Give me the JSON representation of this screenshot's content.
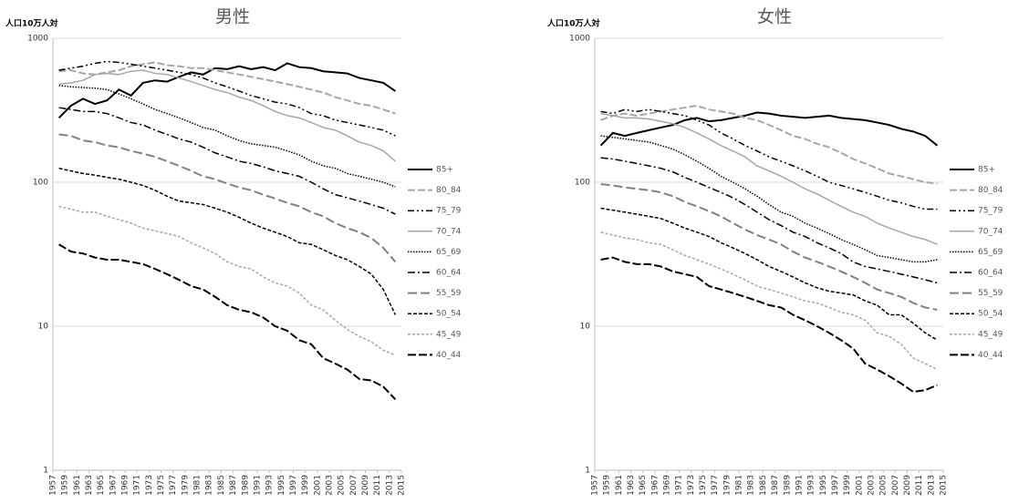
{
  "chart_data": [
    {
      "type": "line",
      "title": "男性",
      "ylabel": "人口10万人対",
      "log": true,
      "grid": true,
      "ylim": [
        1,
        1000
      ],
      "yticks": [
        1,
        10,
        100,
        1000
      ],
      "xlim": [
        1957,
        2015
      ],
      "xticks": [
        1957,
        1959,
        1961,
        1963,
        1965,
        1967,
        1969,
        1971,
        1973,
        1975,
        1977,
        1979,
        1981,
        1983,
        1985,
        1987,
        1989,
        1991,
        1993,
        1995,
        1997,
        1999,
        2001,
        2003,
        2005,
        2007,
        2009,
        2011,
        2013,
        2015
      ],
      "x": [
        1958,
        1960,
        1962,
        1964,
        1966,
        1968,
        1970,
        1972,
        1974,
        1976,
        1978,
        1980,
        1982,
        1984,
        1986,
        1988,
        1990,
        1992,
        1994,
        1996,
        1998,
        2000,
        2002,
        2004,
        2006,
        2008,
        2010,
        2012,
        2014
      ],
      "series": [
        {
          "name": "85+",
          "color": "#000000",
          "width": 2,
          "dash": "none",
          "values": [
            280,
            340,
            380,
            350,
            370,
            440,
            400,
            490,
            510,
            500,
            540,
            580,
            560,
            620,
            610,
            640,
            610,
            630,
            600,
            670,
            630,
            620,
            590,
            580,
            570,
            530,
            510,
            490,
            430
          ]
        },
        {
          "name": "80_84",
          "color": "#a6a6a6",
          "width": 2,
          "dash": "8 3",
          "values": [
            590,
            600,
            570,
            560,
            580,
            600,
            640,
            660,
            680,
            650,
            640,
            620,
            620,
            600,
            580,
            560,
            540,
            520,
            500,
            480,
            460,
            440,
            420,
            390,
            370,
            350,
            340,
            320,
            300
          ]
        },
        {
          "name": "75_79",
          "color": "#000000",
          "width": 1.5,
          "dash": "7 3 2 3 2 3",
          "values": [
            600,
            620,
            640,
            670,
            690,
            680,
            660,
            640,
            620,
            600,
            580,
            560,
            530,
            490,
            460,
            430,
            400,
            380,
            360,
            350,
            330,
            300,
            290,
            270,
            260,
            250,
            240,
            230,
            210
          ]
        },
        {
          "name": "70_74",
          "color": "#a6a6a6",
          "width": 1.5,
          "dash": "none",
          "values": [
            480,
            490,
            510,
            560,
            570,
            560,
            590,
            600,
            570,
            560,
            530,
            500,
            470,
            440,
            420,
            390,
            370,
            340,
            310,
            290,
            280,
            260,
            240,
            230,
            210,
            190,
            180,
            165,
            140
          ]
        },
        {
          "name": "65_69",
          "color": "#000000",
          "width": 1.5,
          "dash": "1.5 1.5",
          "values": [
            470,
            460,
            455,
            450,
            440,
            410,
            380,
            350,
            320,
            300,
            280,
            260,
            240,
            230,
            210,
            195,
            185,
            180,
            175,
            165,
            155,
            140,
            130,
            125,
            115,
            110,
            105,
            100,
            93
          ]
        },
        {
          "name": "60_64",
          "color": "#000000",
          "width": 1.5,
          "dash": "8 3 2 3",
          "values": [
            330,
            320,
            310,
            310,
            300,
            280,
            260,
            250,
            230,
            215,
            200,
            190,
            175,
            160,
            150,
            140,
            135,
            128,
            120,
            115,
            110,
            100,
            90,
            82,
            78,
            74,
            70,
            66,
            60
          ]
        },
        {
          "name": "55_59",
          "color": "#808080",
          "width": 2,
          "dash": "10 4",
          "values": [
            215,
            210,
            195,
            190,
            180,
            175,
            165,
            158,
            150,
            140,
            130,
            120,
            110,
            105,
            98,
            92,
            88,
            82,
            77,
            72,
            68,
            62,
            58,
            52,
            48,
            45,
            41,
            35,
            28
          ]
        },
        {
          "name": "50_54",
          "color": "#000000",
          "width": 1.5,
          "dash": "4 2",
          "values": [
            125,
            120,
            115,
            112,
            108,
            105,
            100,
            95,
            88,
            80,
            74,
            72,
            70,
            66,
            62,
            57,
            52,
            48,
            45,
            42,
            38,
            37,
            34,
            31,
            29,
            26,
            23,
            18,
            12
          ]
        },
        {
          "name": "45_49",
          "color": "#a6a6a6",
          "width": 1.5,
          "dash": "3 2",
          "values": [
            68,
            65,
            62,
            62,
            58,
            55,
            52,
            48,
            46,
            44,
            42,
            38,
            35,
            32,
            28,
            26,
            25,
            22,
            20,
            19,
            17,
            14,
            13,
            11,
            9.5,
            8.5,
            7.8,
            6.8,
            6.3
          ]
        },
        {
          "name": "40_44",
          "color": "#000000",
          "width": 2,
          "dash": "9 3",
          "values": [
            37,
            33,
            32,
            30,
            29,
            29,
            28,
            27,
            25,
            23,
            21,
            19,
            18,
            16,
            14,
            13,
            12.5,
            11.5,
            10,
            9.3,
            8,
            7.5,
            6,
            5.5,
            5,
            4.3,
            4.2,
            3.8,
            3.1
          ]
        }
      ]
    },
    {
      "type": "line",
      "title": "女性",
      "ylabel": "人口10万人対",
      "log": true,
      "grid": true,
      "ylim": [
        1,
        1000
      ],
      "yticks": [
        1,
        10,
        100,
        1000
      ],
      "xlim": [
        1957,
        2015
      ],
      "xticks": [
        1957,
        1959,
        1961,
        1963,
        1965,
        1967,
        1969,
        1971,
        1973,
        1975,
        1977,
        1979,
        1981,
        1983,
        1985,
        1987,
        1989,
        1991,
        1993,
        1995,
        1997,
        1999,
        2001,
        2003,
        2005,
        2007,
        2009,
        2011,
        2013,
        2015
      ],
      "x": [
        1958,
        1960,
        1962,
        1964,
        1966,
        1968,
        1970,
        1972,
        1974,
        1976,
        1978,
        1980,
        1982,
        1984,
        1986,
        1988,
        1990,
        1992,
        1994,
        1996,
        1998,
        2000,
        2002,
        2004,
        2006,
        2008,
        2010,
        2012,
        2014
      ],
      "series": [
        {
          "name": "85+",
          "color": "#000000",
          "width": 2,
          "dash": "none",
          "values": [
            180,
            220,
            210,
            220,
            230,
            240,
            250,
            270,
            280,
            265,
            270,
            280,
            290,
            305,
            300,
            290,
            285,
            280,
            285,
            290,
            280,
            275,
            270,
            260,
            250,
            235,
            225,
            210,
            180
          ]
        },
        {
          "name": "80_84",
          "color": "#a6a6a6",
          "width": 2,
          "dash": "8 3",
          "values": [
            270,
            290,
            300,
            290,
            300,
            310,
            320,
            330,
            340,
            320,
            310,
            300,
            280,
            270,
            250,
            230,
            210,
            200,
            185,
            175,
            160,
            145,
            135,
            125,
            115,
            110,
            105,
            100,
            98
          ]
        },
        {
          "name": "75_79",
          "color": "#000000",
          "width": 1.5,
          "dash": "7 3 2 3 2 3",
          "values": [
            310,
            300,
            320,
            310,
            320,
            310,
            300,
            290,
            270,
            250,
            220,
            200,
            180,
            165,
            150,
            140,
            130,
            120,
            110,
            100,
            95,
            90,
            85,
            80,
            75,
            72,
            68,
            65,
            65
          ]
        },
        {
          "name": "70_74",
          "color": "#a6a6a6",
          "width": 1.5,
          "dash": "none",
          "values": [
            300,
            290,
            280,
            280,
            275,
            265,
            255,
            240,
            220,
            200,
            180,
            165,
            150,
            130,
            120,
            110,
            100,
            90,
            83,
            75,
            68,
            62,
            58,
            52,
            48,
            45,
            42,
            40,
            37
          ]
        },
        {
          "name": "65_69",
          "color": "#000000",
          "width": 1.5,
          "dash": "1.5 1.5",
          "values": [
            210,
            205,
            200,
            195,
            190,
            180,
            170,
            155,
            140,
            125,
            110,
            100,
            90,
            80,
            70,
            62,
            58,
            52,
            48,
            44,
            40,
            37,
            34,
            31,
            30,
            29,
            28,
            28,
            29
          ]
        },
        {
          "name": "60_64",
          "color": "#000000",
          "width": 1.5,
          "dash": "8 3 2 3",
          "values": [
            148,
            145,
            140,
            135,
            130,
            125,
            118,
            108,
            100,
            92,
            85,
            78,
            70,
            62,
            55,
            50,
            45,
            42,
            38,
            35,
            32,
            28,
            26,
            25,
            24,
            23,
            22,
            21,
            20
          ]
        },
        {
          "name": "55_59",
          "color": "#808080",
          "width": 2,
          "dash": "10 4",
          "values": [
            97,
            95,
            92,
            90,
            88,
            85,
            80,
            73,
            68,
            63,
            58,
            52,
            47,
            43,
            40,
            37,
            33,
            30,
            28,
            26,
            24,
            22,
            20,
            18,
            17,
            16,
            14.5,
            13.5,
            13
          ]
        },
        {
          "name": "50_54",
          "color": "#000000",
          "width": 1.5,
          "dash": "4 2",
          "values": [
            66,
            64,
            62,
            60,
            58,
            56,
            52,
            48,
            45,
            42,
            38,
            35,
            32,
            29,
            26,
            24,
            22,
            20,
            18.5,
            17.5,
            17,
            16.5,
            15,
            14,
            12,
            12,
            10.5,
            9,
            8
          ]
        },
        {
          "name": "45_49",
          "color": "#a6a6a6",
          "width": 1.5,
          "dash": "3 2",
          "values": [
            45,
            43,
            41,
            40,
            38,
            37,
            34,
            31,
            29,
            27,
            25,
            23,
            21,
            19,
            18,
            17,
            16,
            15,
            14.5,
            13.5,
            12.5,
            12,
            11,
            9,
            8.5,
            7.5,
            6,
            5.5,
            5
          ]
        },
        {
          "name": "40_44",
          "color": "#000000",
          "width": 2,
          "dash": "9 3",
          "values": [
            29,
            30,
            28,
            27,
            27,
            26,
            24,
            23,
            22,
            19,
            18,
            17,
            16,
            15,
            14,
            13.5,
            12,
            11,
            10,
            9,
            8,
            7,
            5.5,
            5,
            4.5,
            4,
            3.5,
            3.6,
            3.9
          ]
        }
      ]
    }
  ]
}
